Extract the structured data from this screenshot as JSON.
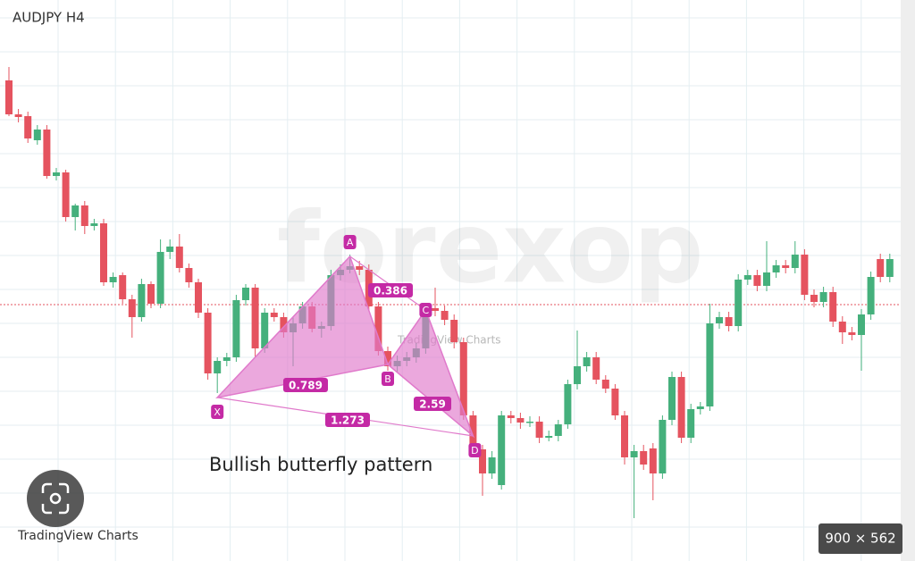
{
  "header": "AUDJPY H4",
  "chart_data": {
    "type": "candlestick",
    "ylim": [
      76.0,
      82.2
    ],
    "up_color": "#45b07c",
    "down_color": "#e5535f",
    "price_line": 78.79,
    "candles": [
      [
        81.3,
        81.45,
        80.9,
        80.92
      ],
      [
        80.92,
        80.98,
        80.83,
        80.89
      ],
      [
        80.9,
        80.95,
        80.6,
        80.65
      ],
      [
        80.63,
        80.8,
        80.58,
        80.75
      ],
      [
        80.75,
        80.8,
        80.2,
        80.23
      ],
      [
        80.23,
        80.32,
        80.18,
        80.27
      ],
      [
        80.27,
        80.3,
        79.72,
        79.77
      ],
      [
        79.77,
        79.92,
        79.62,
        79.9
      ],
      [
        79.9,
        79.95,
        79.58,
        79.67
      ],
      [
        79.67,
        79.75,
        79.62,
        79.7
      ],
      [
        79.7,
        79.75,
        79.0,
        79.04
      ],
      [
        79.04,
        79.15,
        78.98,
        79.1
      ],
      [
        79.12,
        79.15,
        78.8,
        78.85
      ],
      [
        78.85,
        78.9,
        78.42,
        78.65
      ],
      [
        78.65,
        79.08,
        78.6,
        79.02
      ],
      [
        79.02,
        79.05,
        78.75,
        78.8
      ],
      [
        78.8,
        79.52,
        78.75,
        79.38
      ],
      [
        79.38,
        79.52,
        79.3,
        79.44
      ],
      [
        79.44,
        79.58,
        79.15,
        79.2
      ],
      [
        79.2,
        79.25,
        78.98,
        79.04
      ],
      [
        79.04,
        79.08,
        78.64,
        78.7
      ],
      [
        78.7,
        78.75,
        77.95,
        78.02
      ],
      [
        78.02,
        78.2,
        77.8,
        78.16
      ],
      [
        78.16,
        78.25,
        78.1,
        78.2
      ],
      [
        78.2,
        78.9,
        78.15,
        78.84
      ],
      [
        78.84,
        79.02,
        78.78,
        78.98
      ],
      [
        78.98,
        79.02,
        78.2,
        78.3
      ],
      [
        78.3,
        78.75,
        78.25,
        78.7
      ],
      [
        78.7,
        78.75,
        78.6,
        78.65
      ],
      [
        78.65,
        78.7,
        78.42,
        78.48
      ],
      [
        78.48,
        78.65,
        78.1,
        78.58
      ],
      [
        78.58,
        78.82,
        78.52,
        78.77
      ],
      [
        78.77,
        78.82,
        78.48,
        78.52
      ],
      [
        78.52,
        78.6,
        78.42,
        78.55
      ],
      [
        78.55,
        79.18,
        78.5,
        79.12
      ],
      [
        79.12,
        79.24,
        79.06,
        79.18
      ],
      [
        79.18,
        79.35,
        79.14,
        79.22
      ],
      [
        79.22,
        79.28,
        79.12,
        79.18
      ],
      [
        79.18,
        79.24,
        78.72,
        78.77
      ],
      [
        78.77,
        78.82,
        78.22,
        78.27
      ],
      [
        78.27,
        78.32,
        78.05,
        78.1
      ],
      [
        78.1,
        78.22,
        78.04,
        78.16
      ],
      [
        78.16,
        78.26,
        78.1,
        78.2
      ],
      [
        78.2,
        78.36,
        78.14,
        78.3
      ],
      [
        78.3,
        78.8,
        78.24,
        78.75
      ],
      [
        78.75,
        78.98,
        78.66,
        78.72
      ],
      [
        78.72,
        78.78,
        78.56,
        78.62
      ],
      [
        78.62,
        78.68,
        78.3,
        78.37
      ],
      [
        78.37,
        78.42,
        77.5,
        77.55
      ],
      [
        77.55,
        77.6,
        77.1,
        77.17
      ],
      [
        77.17,
        77.22,
        76.65,
        76.9
      ],
      [
        76.9,
        77.15,
        76.84,
        77.08
      ],
      [
        76.77,
        77.6,
        76.72,
        77.55
      ],
      [
        77.55,
        77.6,
        77.46,
        77.52
      ],
      [
        77.52,
        77.58,
        77.4,
        77.47
      ],
      [
        77.47,
        77.54,
        77.42,
        77.48
      ],
      [
        77.48,
        77.54,
        77.24,
        77.3
      ],
      [
        77.3,
        77.38,
        77.26,
        77.32
      ],
      [
        77.32,
        77.5,
        77.26,
        77.45
      ],
      [
        77.45,
        77.95,
        77.4,
        77.9
      ],
      [
        77.9,
        78.5,
        77.84,
        78.1
      ],
      [
        78.1,
        78.26,
        78.04,
        78.2
      ],
      [
        78.2,
        78.26,
        77.9,
        77.95
      ],
      [
        77.95,
        78.0,
        77.8,
        77.85
      ],
      [
        77.85,
        77.9,
        77.5,
        77.55
      ],
      [
        77.55,
        77.6,
        77.0,
        77.08
      ],
      [
        77.08,
        77.22,
        76.4,
        77.15
      ],
      [
        77.15,
        77.22,
        76.94,
        77.0
      ],
      [
        77.18,
        77.24,
        76.6,
        76.9
      ],
      [
        76.9,
        77.55,
        76.84,
        77.5
      ],
      [
        77.5,
        78.04,
        77.44,
        77.98
      ],
      [
        77.98,
        78.04,
        77.24,
        77.3
      ],
      [
        77.3,
        77.68,
        77.24,
        77.62
      ],
      [
        77.62,
        77.7,
        77.56,
        77.65
      ],
      [
        77.65,
        78.8,
        77.6,
        78.58
      ],
      [
        78.58,
        78.71,
        78.52,
        78.65
      ],
      [
        78.65,
        78.71,
        78.49,
        78.55
      ],
      [
        78.55,
        79.13,
        78.49,
        79.07
      ],
      [
        79.07,
        79.18,
        79.01,
        79.12
      ],
      [
        79.12,
        79.18,
        78.94,
        79.0
      ],
      [
        79.0,
        79.5,
        78.94,
        79.15
      ],
      [
        79.15,
        79.29,
        79.09,
        79.23
      ],
      [
        79.23,
        79.29,
        79.14,
        79.2
      ],
      [
        79.2,
        79.5,
        79.14,
        79.35
      ],
      [
        79.35,
        79.41,
        78.84,
        78.9
      ],
      [
        78.9,
        78.96,
        78.76,
        78.82
      ],
      [
        78.82,
        78.99,
        78.76,
        78.93
      ],
      [
        78.93,
        78.99,
        78.54,
        78.6
      ],
      [
        78.6,
        78.66,
        78.35,
        78.48
      ],
      [
        78.48,
        78.54,
        78.39,
        78.45
      ],
      [
        78.45,
        78.74,
        78.05,
        78.68
      ],
      [
        78.68,
        79.16,
        78.62,
        79.1
      ],
      [
        79.3,
        79.36,
        79.04,
        79.1
      ],
      [
        79.1,
        79.36,
        79.04,
        79.3
      ]
    ],
    "pattern": {
      "title": "Bullish butterfly pattern",
      "color": "#e07acb",
      "points": [
        {
          "label": "X",
          "index": 22,
          "price": 77.75
        },
        {
          "label": "A",
          "index": 36,
          "price": 79.33
        },
        {
          "label": "B",
          "index": 40,
          "price": 78.12
        },
        {
          "label": "C",
          "index": 44,
          "price": 78.73
        },
        {
          "label": "D",
          "index": 49,
          "price": 77.32
        }
      ],
      "ratios": [
        0.386,
        0.789,
        1.273,
        2.59
      ]
    }
  },
  "watermark": {
    "brand": "forexop",
    "source": "TradingView Charts"
  },
  "footer": {
    "source": "TradingView Charts",
    "image_size": "900 × 562"
  }
}
